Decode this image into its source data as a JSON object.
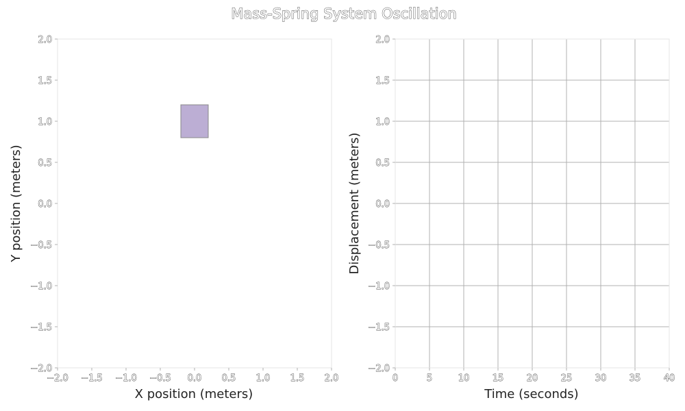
{
  "title": "Mass-Spring System Oscillation",
  "chart_data": [
    {
      "type": "scatter",
      "panel": "position",
      "xlabel": "X position (meters)",
      "ylabel": "Y position (meters)",
      "xlim": [
        -2.0,
        2.0
      ],
      "ylim": [
        -2.0,
        2.0
      ],
      "xticks": [
        "−2.0",
        "−1.5",
        "−1.0",
        "−0.5",
        "0.0",
        "0.5",
        "1.0",
        "1.5",
        "2.0"
      ],
      "yticks": [
        "2.0",
        "1.5",
        "1.0",
        "0.5",
        "0.0",
        "−0.5",
        "−1.0",
        "−1.5",
        "−2.0"
      ],
      "grid": false,
      "mass": {
        "x": 0.0,
        "y": 1.0,
        "width": 0.4,
        "height": 0.4,
        "color": "#bcaed4",
        "edge_color": "#888888"
      }
    },
    {
      "type": "line",
      "panel": "displacement",
      "xlabel": "Time (seconds)",
      "ylabel": "Displacement (meters)",
      "xlim": [
        0,
        40
      ],
      "ylim": [
        -2.0,
        2.0
      ],
      "xticks": [
        "0",
        "5",
        "10",
        "15",
        "20",
        "25",
        "30",
        "35",
        "40"
      ],
      "yticks": [
        "2.0",
        "1.5",
        "1.0",
        "0.5",
        "0.0",
        "−0.5",
        "−1.0",
        "−1.5",
        "−2.0"
      ],
      "grid": true,
      "series": [
        {
          "x": [],
          "y": []
        }
      ]
    }
  ]
}
